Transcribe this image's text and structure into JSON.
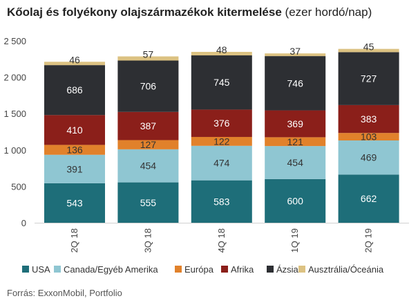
{
  "title_bold": "Kőolaj és folyékony olajszármazékok kitermelése",
  "title_unit": "(ezer hordó/nap)",
  "source": "Forrás: ExxonMobil, Portfolio",
  "colors": {
    "USA": "#1e6e79",
    "Canada/Egyéb Amerika": "#8fc6d2",
    "Európa": "#e1812b",
    "Afrika": "#8b1f1a",
    "Ázsia": "#2d2f33",
    "Ausztrália/Óceánia": "#dcc282"
  },
  "chart_data": {
    "type": "bar",
    "stacked": true,
    "categories": [
      "2Q 18",
      "3Q 18",
      "4Q 18",
      "1Q 19",
      "2Q 19"
    ],
    "series": [
      {
        "name": "USA",
        "values": [
          543,
          555,
          583,
          600,
          662
        ]
      },
      {
        "name": "Canada/Egyéb Amerika",
        "values": [
          391,
          454,
          474,
          454,
          469
        ]
      },
      {
        "name": "Európa",
        "values": [
          136,
          127,
          122,
          121,
          103
        ]
      },
      {
        "name": "Afrika",
        "values": [
          410,
          387,
          376,
          369,
          383
        ]
      },
      {
        "name": "Ázsia",
        "values": [
          686,
          706,
          745,
          746,
          727
        ]
      },
      {
        "name": "Ausztrália/Óceánia",
        "values": [
          46,
          57,
          48,
          37,
          45
        ]
      }
    ],
    "yticks": [
      "0",
      "500",
      "1 000",
      "1 500",
      "2 000",
      "2 500"
    ],
    "ylim": [
      0,
      2500
    ],
    "legend_position": "bottom",
    "grid": false
  }
}
